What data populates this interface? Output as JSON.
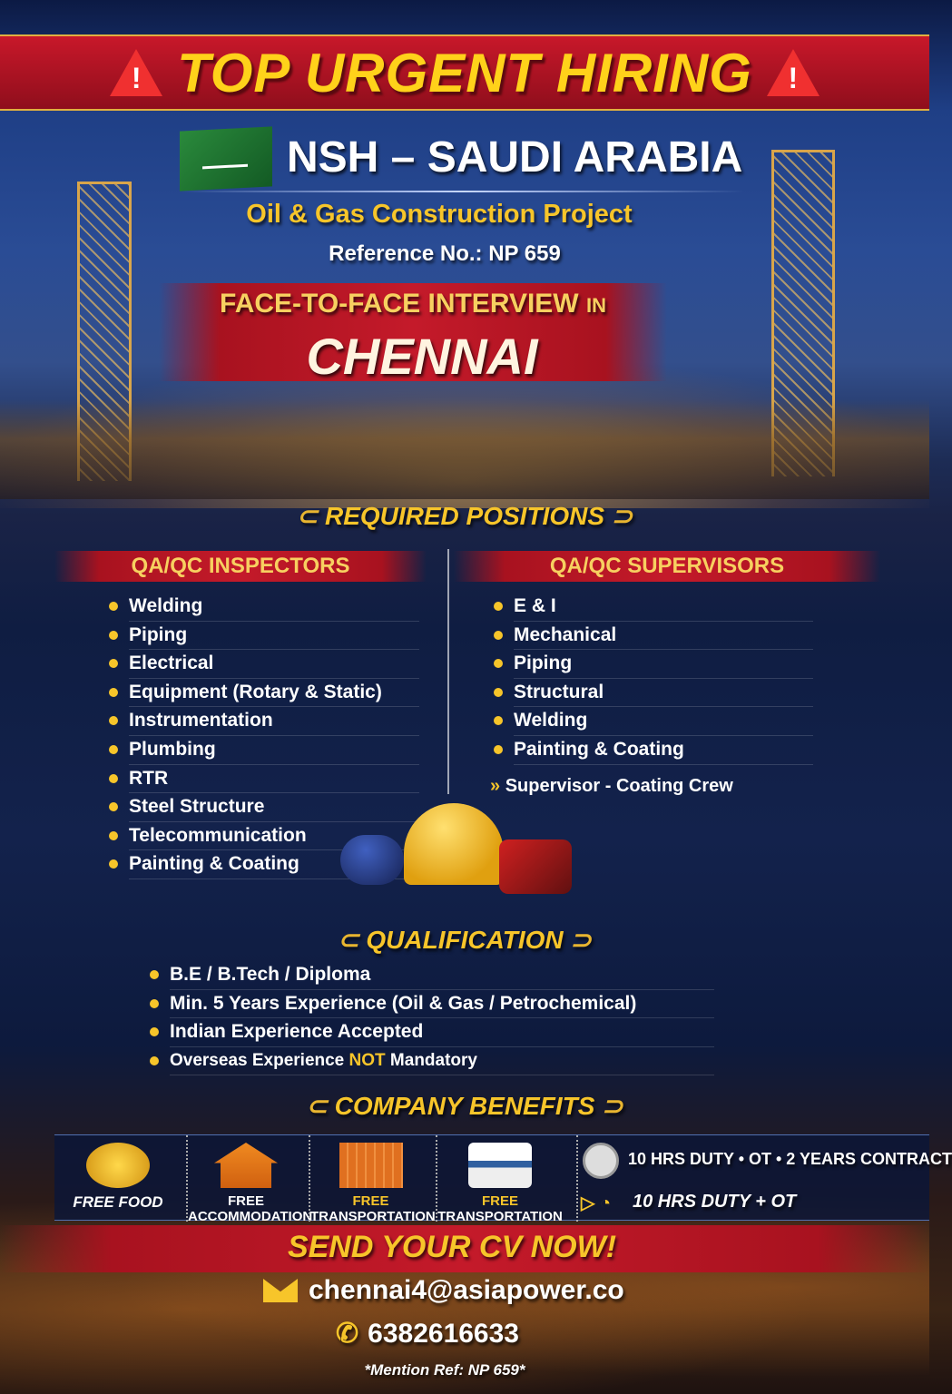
{
  "header": {
    "title": "TOP URGENT HIRING",
    "warning_icon": "warning-triangle-icon"
  },
  "company": {
    "flag_icon": "saudi-flag-icon",
    "name": "NSH – SAUDI ARABIA",
    "project": "Oil & Gas Construction Project",
    "reference": "Reference No.: NP 659"
  },
  "interview": {
    "line1": "FACE-TO-FACE INTERVIEW",
    "line1_suffix": "IN",
    "city": "CHENNAI"
  },
  "positions": {
    "title": "REQUIRED POSITIONS",
    "inspectors": {
      "heading": "QA/QC INSPECTORS",
      "items": [
        "Welding",
        "Piping",
        "Electrical",
        "Equipment (Rotary & Static)",
        "Instrumentation",
        "Plumbing",
        "RTR",
        "Steel Structure",
        "Telecommunication",
        "Painting & Coating"
      ]
    },
    "supervisors": {
      "heading": "QA/QC SUPERVISORS",
      "items": [
        "E & I",
        "Mechanical",
        "Piping",
        "Structural",
        "Welding",
        "Painting & Coating"
      ],
      "extra": "Supervisor - Coating Crew"
    }
  },
  "qualification": {
    "title": "QUALIFICATION",
    "items": [
      "B.E / B.Tech / Diploma",
      "Min. 5 Years Experience (Oil & Gas / Petrochemical)",
      "Indian Experience Accepted"
    ],
    "last_prefix": "Overseas Experience ",
    "last_highlight": "NOT",
    "last_suffix": " Mandatory"
  },
  "benefits": {
    "title": "COMPANY BENEFITS",
    "items": [
      {
        "label": "FREE FOOD",
        "icon": "food-icon"
      },
      {
        "label": "FREE ACCOMMODATION",
        "icon": "house-icon"
      },
      {
        "label_prefix": "FREE",
        "label": " TRANSPORTATION",
        "icon": "building-icon"
      },
      {
        "label_prefix": "FREE",
        "label": " TRANSPORTATION",
        "icon": "van-icon"
      }
    ],
    "duty1": "10 HRS DUTY • OT • 2 YEARS CONTRACT",
    "duty2": "10 HRS DUTY + OT"
  },
  "contact": {
    "cta": "SEND YOUR CV NOW!",
    "email": "chennai4@asiapower.co",
    "phone": "6382616633",
    "note": "*Mention Ref: NP 659*"
  },
  "colors": {
    "accent_yellow": "#f7c52a",
    "banner_red": "#c41a2a",
    "navy": "#13224c"
  }
}
